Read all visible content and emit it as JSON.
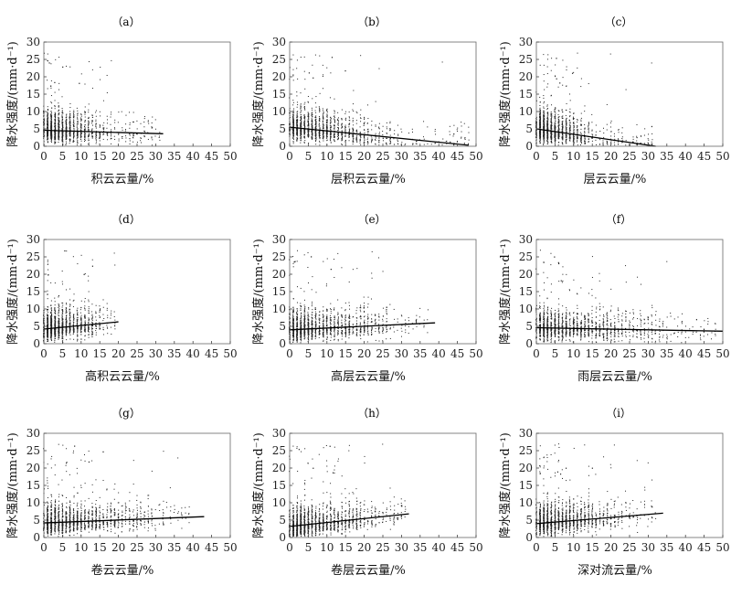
{
  "chart_data": [
    {
      "type": "scatter",
      "title": "（a）",
      "xlabel": "积云云量/%",
      "ylabel": "降水强度/(mm·d⁻¹)",
      "xlim": [
        0,
        50
      ],
      "ylim": [
        0,
        30
      ],
      "xticks": [
        0,
        5,
        10,
        15,
        20,
        25,
        30,
        35,
        40,
        45,
        50
      ],
      "yticks": [
        0,
        5,
        10,
        15,
        20,
        25,
        30
      ],
      "cloud": {
        "x_range": [
          0,
          32
        ],
        "x_dense_max": 18,
        "y_center": 4.5,
        "y_max": 27
      },
      "trend": {
        "x": [
          0,
          32
        ],
        "y": [
          4.6,
          3.6
        ]
      }
    },
    {
      "type": "scatter",
      "title": "（b）",
      "xlabel": "层积云云量/%",
      "ylabel": "降水强度/(mm·d⁻¹)",
      "xlim": [
        0,
        50
      ],
      "ylim": [
        0,
        30
      ],
      "xticks": [
        0,
        5,
        10,
        15,
        20,
        25,
        30,
        35,
        40,
        45,
        50
      ],
      "yticks": [
        0,
        5,
        10,
        15,
        20,
        25,
        30
      ],
      "cloud": {
        "x_range": [
          0,
          49
        ],
        "x_dense_max": 28,
        "y_center": 4.5,
        "y_max": 27
      },
      "trend": {
        "x": [
          0,
          48
        ],
        "y": [
          5.5,
          0.3
        ]
      }
    },
    {
      "type": "scatter",
      "title": "（c）",
      "xlabel": "层云云量/%",
      "ylabel": "降水强度/(mm·d⁻¹)",
      "xlim": [
        0,
        50
      ],
      "ylim": [
        0,
        30
      ],
      "xticks": [
        0,
        5,
        10,
        15,
        20,
        25,
        30,
        35,
        40,
        45,
        50
      ],
      "yticks": [
        0,
        5,
        10,
        15,
        20,
        25,
        30
      ],
      "cloud": {
        "x_range": [
          0,
          32
        ],
        "x_dense_max": 15,
        "y_center": 4,
        "y_max": 27
      },
      "trend": {
        "x": [
          0,
          32
        ],
        "y": [
          5.0,
          0.0
        ]
      }
    },
    {
      "type": "scatter",
      "title": "（d）",
      "xlabel": "高积云云量/%",
      "ylabel": "降水强度/(mm·d⁻¹)",
      "xlim": [
        0,
        50
      ],
      "ylim": [
        0,
        30
      ],
      "xticks": [
        0,
        5,
        10,
        15,
        20,
        25,
        30,
        35,
        40,
        45,
        50
      ],
      "yticks": [
        0,
        5,
        10,
        15,
        20,
        25,
        30
      ],
      "cloud": {
        "x_range": [
          0,
          20
        ],
        "x_dense_max": 15,
        "y_center": 4.5,
        "y_max": 27
      },
      "trend": {
        "x": [
          0,
          20
        ],
        "y": [
          4.2,
          6.3
        ]
      }
    },
    {
      "type": "scatter",
      "title": "（e）",
      "xlabel": "高层云云量/%",
      "ylabel": "降水强度/(mm·d⁻¹)",
      "xlim": [
        0,
        50
      ],
      "ylim": [
        0,
        30
      ],
      "xticks": [
        0,
        5,
        10,
        15,
        20,
        25,
        30,
        35,
        40,
        45,
        50
      ],
      "yticks": [
        0,
        5,
        10,
        15,
        20,
        25,
        30
      ],
      "cloud": {
        "x_range": [
          0,
          38
        ],
        "x_dense_max": 28,
        "y_center": 4.5,
        "y_max": 27
      },
      "trend": {
        "x": [
          0,
          39
        ],
        "y": [
          4.0,
          6.0
        ]
      }
    },
    {
      "type": "scatter",
      "title": "（f）",
      "xlabel": "雨层云云量/%",
      "ylabel": "降水强度/(mm·d⁻¹)",
      "xlim": [
        0,
        50
      ],
      "ylim": [
        0,
        30
      ],
      "xticks": [
        0,
        5,
        10,
        15,
        20,
        25,
        30,
        35,
        40,
        45,
        50
      ],
      "yticks": [
        0,
        5,
        10,
        15,
        20,
        25,
        30
      ],
      "cloud": {
        "x_range": [
          0,
          49
        ],
        "x_dense_max": 36,
        "y_center": 4.5,
        "y_max": 27
      },
      "trend": {
        "x": [
          0,
          50
        ],
        "y": [
          4.6,
          3.6
        ]
      }
    },
    {
      "type": "scatter",
      "title": "（g）",
      "xlabel": "卷云云量/%",
      "ylabel": "降水强度/(mm·d⁻¹)",
      "xlim": [
        0,
        50
      ],
      "ylim": [
        0,
        30
      ],
      "xticks": [
        0,
        5,
        10,
        15,
        20,
        25,
        30,
        35,
        40,
        45,
        50
      ],
      "yticks": [
        0,
        5,
        10,
        15,
        20,
        25,
        30
      ],
      "cloud": {
        "x_range": [
          0,
          40
        ],
        "x_dense_max": 30,
        "y_center": 4.5,
        "y_max": 27
      },
      "trend": {
        "x": [
          0,
          43
        ],
        "y": [
          4.2,
          6.0
        ]
      }
    },
    {
      "type": "scatter",
      "title": "（h）",
      "xlabel": "卷层云云量/%",
      "ylabel": "降水强度/(mm·d⁻¹)",
      "xlim": [
        0,
        50
      ],
      "ylim": [
        0,
        30
      ],
      "xticks": [
        0,
        5,
        10,
        15,
        20,
        25,
        30,
        35,
        40,
        45,
        50
      ],
      "yticks": [
        0,
        5,
        10,
        15,
        20,
        25,
        30
      ],
      "cloud": {
        "x_range": [
          0,
          32
        ],
        "x_dense_max": 25,
        "y_center": 4.5,
        "y_max": 27
      },
      "trend": {
        "x": [
          0,
          32
        ],
        "y": [
          3.2,
          6.8
        ]
      }
    },
    {
      "type": "scatter",
      "title": "（i）",
      "xlabel": "深对流云量/%",
      "ylabel": "降水强度/(mm·d⁻¹)",
      "xlim": [
        0,
        50
      ],
      "ylim": [
        0,
        30
      ],
      "xticks": [
        0,
        5,
        10,
        15,
        20,
        25,
        30,
        35,
        40,
        45,
        50
      ],
      "yticks": [
        0,
        5,
        10,
        15,
        20,
        25,
        30
      ],
      "cloud": {
        "x_range": [
          0,
          33
        ],
        "x_dense_max": 22,
        "y_center": 4.5,
        "y_max": 27
      },
      "trend": {
        "x": [
          0,
          34
        ],
        "y": [
          4.0,
          7.0
        ]
      }
    }
  ]
}
